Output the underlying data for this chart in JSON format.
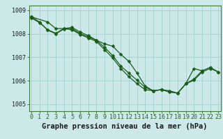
{
  "title": "Graphe pression niveau de la mer (hPa)",
  "xlabel_ticks": [
    0,
    1,
    2,
    3,
    4,
    5,
    6,
    7,
    8,
    9,
    10,
    11,
    12,
    13,
    14,
    15,
    16,
    17,
    18,
    19,
    20,
    21,
    22,
    23
  ],
  "ylim": [
    1004.7,
    1009.2
  ],
  "xlim": [
    -0.3,
    23.3
  ],
  "yticks": [
    1005,
    1006,
    1007,
    1008,
    1009
  ],
  "bg_color": "#cce8e8",
  "grid_color": "#99cccc",
  "line_color": "#1a5c1a",
  "markersize": 2.5,
  "linewidth": 0.9,
  "title_fontsize": 7.5,
  "tick_fontsize": 6.0,
  "line1_x": [
    0,
    1,
    2,
    3,
    4,
    5,
    6,
    7,
    8,
    9,
    10,
    11,
    12,
    13,
    14,
    15,
    16,
    17,
    18,
    19,
    20,
    21
  ],
  "line1_y": [
    1008.72,
    1008.5,
    1008.15,
    1008.0,
    1008.2,
    1008.22,
    1008.0,
    1007.87,
    1007.72,
    1007.57,
    1007.47,
    1007.12,
    1006.82,
    1006.32,
    1005.77,
    1005.57,
    1005.62,
    1005.57,
    1005.47,
    1005.87,
    1006.07,
    1006.42
  ],
  "line2_x": [
    0,
    2,
    3,
    4,
    5,
    6,
    7,
    8,
    9,
    10,
    11,
    12,
    13,
    14,
    15,
    16,
    17,
    18,
    19,
    20,
    21,
    22,
    23
  ],
  "line2_y": [
    1008.72,
    1008.5,
    1008.22,
    1008.22,
    1008.27,
    1008.07,
    1007.92,
    1007.72,
    1007.42,
    1007.07,
    1006.62,
    1006.32,
    1006.02,
    1005.72,
    1005.57,
    1005.62,
    1005.52,
    1005.47,
    1005.87,
    1006.52,
    1006.42,
    1006.57,
    1006.37
  ],
  "line3_x": [
    0,
    1,
    2,
    3,
    4,
    5,
    6,
    7,
    8,
    9,
    10,
    11,
    12,
    13,
    14,
    15,
    16,
    17,
    18,
    19,
    20,
    21,
    22,
    23
  ],
  "line3_y": [
    1008.67,
    1008.47,
    1008.17,
    1008.02,
    1008.22,
    1008.17,
    1007.97,
    1007.82,
    1007.67,
    1007.32,
    1006.97,
    1006.52,
    1006.17,
    1005.87,
    1005.62,
    1005.57,
    1005.62,
    1005.52,
    1005.47,
    1005.87,
    1006.02,
    1006.37,
    1006.52,
    1006.37
  ]
}
